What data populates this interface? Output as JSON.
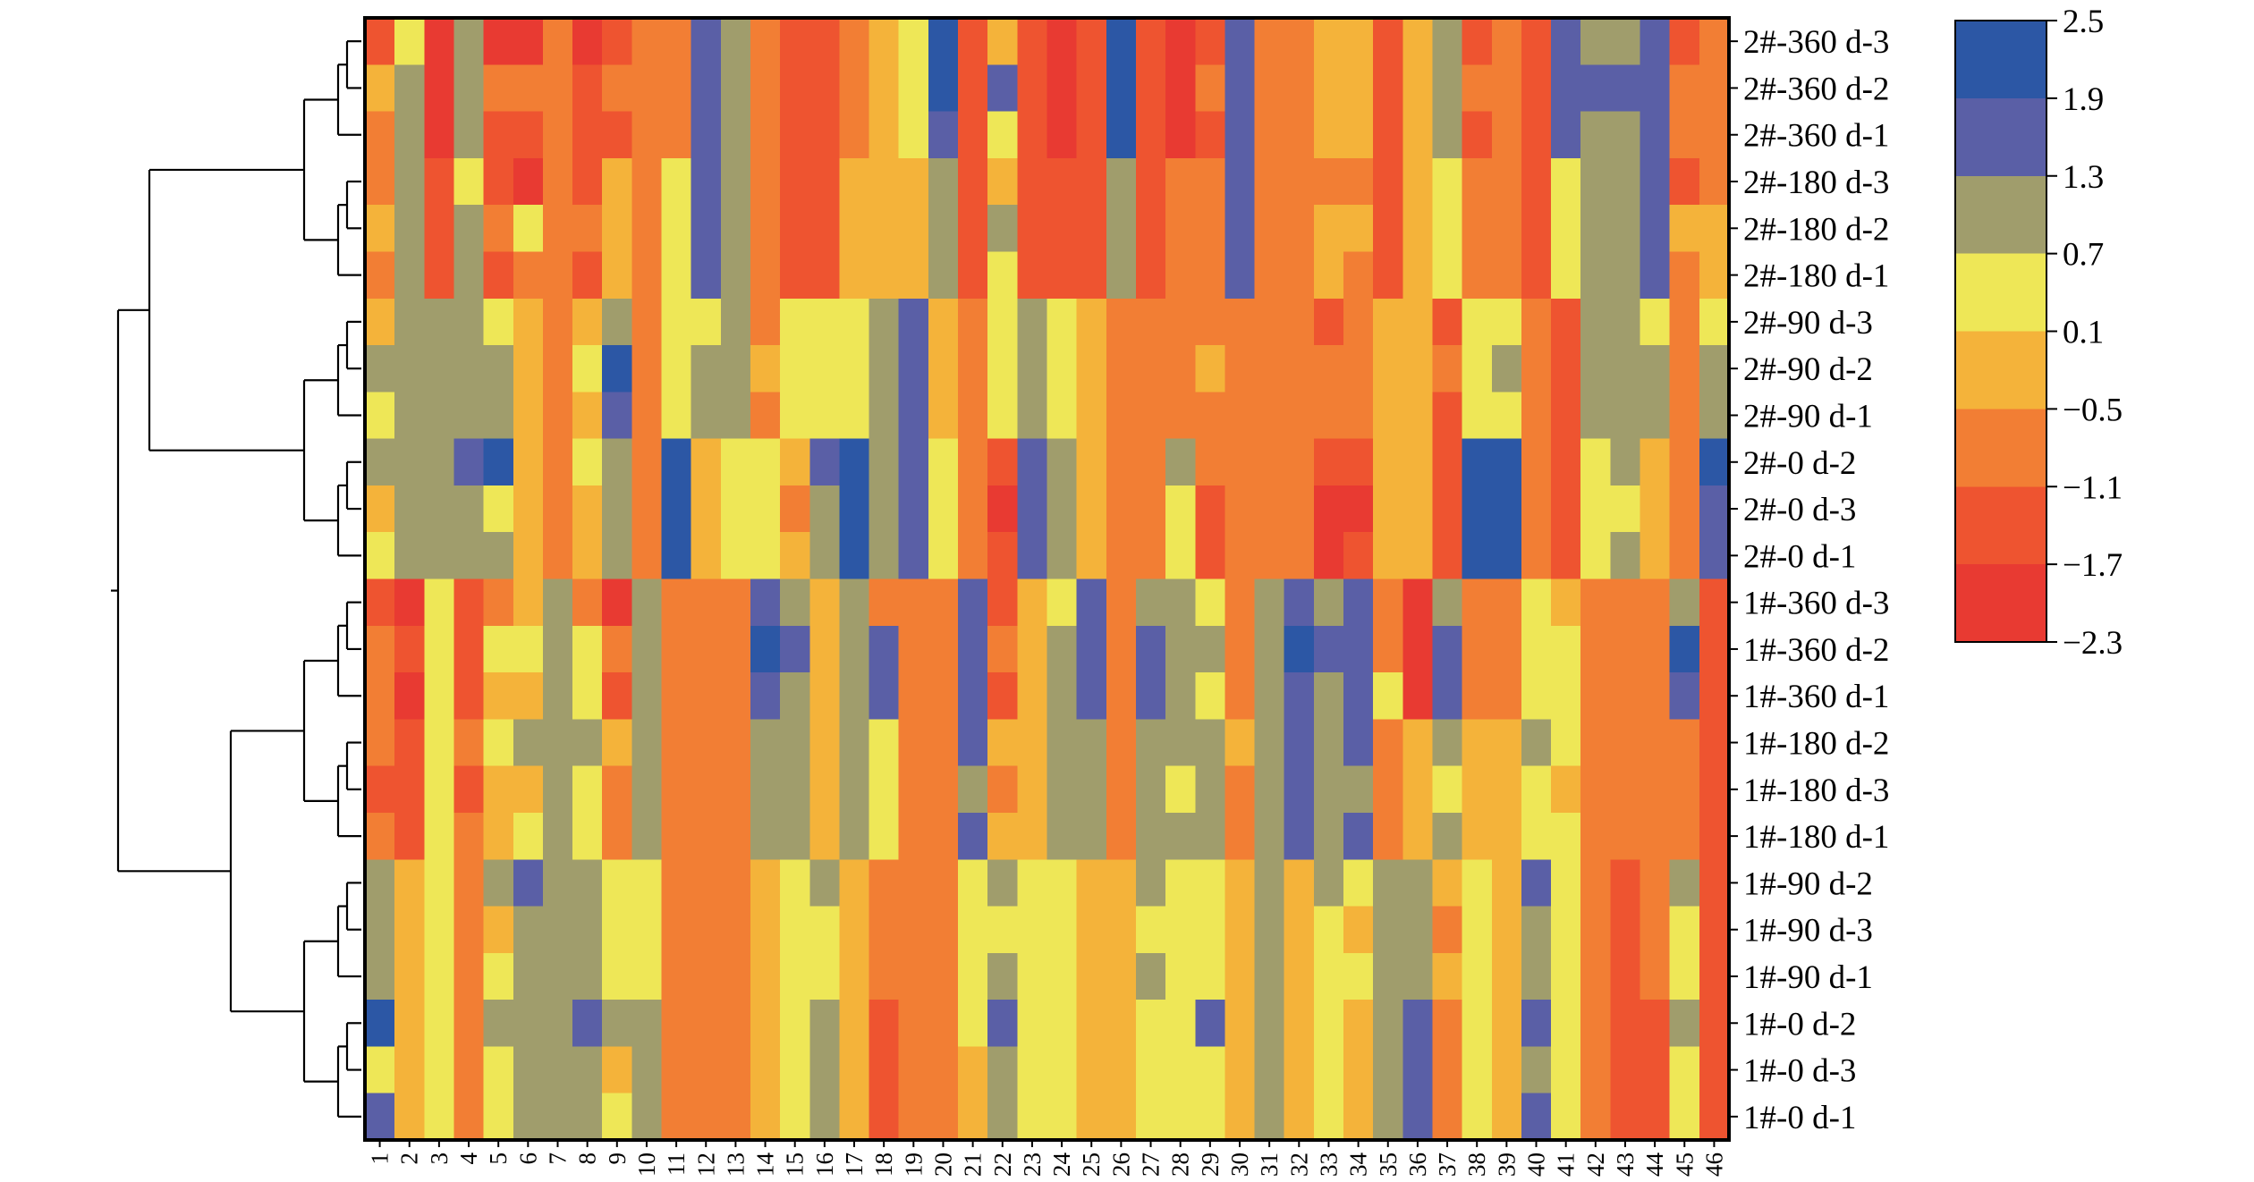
{
  "chart_data": {
    "type": "heatmap",
    "title": "",
    "xlabel": "",
    "ylabel": "",
    "columns": [
      "1",
      "2",
      "3",
      "4",
      "5",
      "6",
      "7",
      "8",
      "9",
      "10",
      "11",
      "12",
      "13",
      "14",
      "15",
      "16",
      "17",
      "18",
      "19",
      "20",
      "21",
      "22",
      "23",
      "24",
      "25",
      "26",
      "27",
      "28",
      "29",
      "30",
      "31",
      "32",
      "33",
      "34",
      "35",
      "36",
      "37",
      "38",
      "39",
      "40",
      "41",
      "42",
      "43",
      "44",
      "45",
      "46"
    ],
    "rows": [
      "2#-360 d-3",
      "2#-360 d-2",
      "2#-360 d-1",
      "2#-180 d-3",
      "2#-180 d-2",
      "2#-180 d-1",
      "2#-90 d-3",
      "2#-90 d-2",
      "2#-90 d-1",
      "2#-0 d-2",
      "2#-0 d-3",
      "2#-0 d-1",
      "1#-360 d-3",
      "1#-360 d-2",
      "1#-360 d-1",
      "1#-180 d-2",
      "1#-180 d-3",
      "1#-180 d-1",
      "1#-90 d-2",
      "1#-90 d-3",
      "1#-90 d-1",
      "1#-0 d-2",
      "1#-0 d-3",
      "1#-0 d-1"
    ],
    "values": [
      [
        -1.5,
        0.4,
        -2.0,
        1.0,
        -2.0,
        -2.0,
        -0.8,
        -2.0,
        -1.5,
        -0.8,
        -0.8,
        1.6,
        1.0,
        -0.8,
        -1.4,
        -1.4,
        -0.8,
        -0.2,
        0.4,
        2.2,
        -1.4,
        -0.2,
        -1.4,
        -2.0,
        -1.4,
        2.2,
        -1.4,
        -2.0,
        -1.5,
        1.6,
        -0.8,
        -0.8,
        -0.2,
        -0.2,
        -1.4,
        -0.2,
        1.0,
        -1.5,
        -0.8,
        -1.4,
        1.6,
        1.0,
        1.0,
        1.6,
        -1.4,
        -0.8
      ],
      [
        -0.2,
        1.0,
        -2.0,
        1.0,
        -0.8,
        -0.8,
        -0.8,
        -1.5,
        -0.8,
        -0.8,
        -0.8,
        1.6,
        1.0,
        -0.8,
        -1.4,
        -1.4,
        -0.8,
        -0.2,
        0.4,
        2.2,
        -1.4,
        1.6,
        -1.4,
        -2.0,
        -1.4,
        2.2,
        -1.4,
        -2.0,
        -0.8,
        1.6,
        -0.8,
        -0.8,
        -0.2,
        -0.2,
        -1.4,
        -0.2,
        1.0,
        -0.8,
        -0.8,
        -1.4,
        1.6,
        1.6,
        1.6,
        1.6,
        -0.8,
        -0.8
      ],
      [
        -0.8,
        1.0,
        -2.0,
        1.0,
        -1.4,
        -1.4,
        -0.8,
        -1.5,
        -1.4,
        -0.8,
        -0.8,
        1.6,
        1.0,
        -0.8,
        -1.4,
        -1.4,
        -0.8,
        -0.2,
        0.4,
        1.6,
        -1.4,
        0.4,
        -1.4,
        -2.0,
        -1.4,
        2.2,
        -1.4,
        -2.0,
        -1.5,
        1.6,
        -0.8,
        -0.8,
        -0.2,
        -0.2,
        -1.4,
        -0.2,
        1.0,
        -1.5,
        -0.8,
        -1.4,
        1.6,
        1.0,
        1.0,
        1.6,
        -0.8,
        -0.8
      ],
      [
        -0.8,
        1.0,
        -1.4,
        0.4,
        -1.4,
        -2.0,
        -0.8,
        -1.5,
        -0.2,
        -0.8,
        0.4,
        1.6,
        1.0,
        -0.8,
        -1.4,
        -1.4,
        -0.2,
        -0.2,
        -0.2,
        1.0,
        -1.4,
        -0.2,
        -1.4,
        -1.4,
        -1.4,
        1.0,
        -1.4,
        -0.8,
        -0.8,
        1.6,
        -0.8,
        -0.8,
        -0.8,
        -0.8,
        -1.4,
        -0.2,
        0.4,
        -0.8,
        -0.8,
        -1.4,
        0.4,
        1.0,
        1.0,
        1.6,
        -1.5,
        -0.8
      ],
      [
        -0.2,
        1.0,
        -1.4,
        1.0,
        -0.8,
        0.4,
        -0.8,
        -0.8,
        -0.2,
        -0.8,
        0.4,
        1.6,
        1.0,
        -0.8,
        -1.4,
        -1.4,
        -0.2,
        -0.2,
        -0.2,
        1.0,
        -1.4,
        1.0,
        -1.4,
        -1.4,
        -1.4,
        1.0,
        -1.4,
        -0.8,
        -0.8,
        1.6,
        -0.8,
        -0.8,
        -0.2,
        -0.2,
        -1.4,
        -0.2,
        0.4,
        -0.8,
        -0.8,
        -1.4,
        0.4,
        1.0,
        1.0,
        1.6,
        -0.2,
        -0.2
      ],
      [
        -0.8,
        1.0,
        -1.4,
        1.0,
        -1.4,
        -0.8,
        -0.8,
        -1.5,
        -0.2,
        -0.8,
        0.4,
        1.6,
        1.0,
        -0.8,
        -1.4,
        -1.4,
        -0.2,
        -0.2,
        -0.2,
        1.0,
        -1.4,
        0.4,
        -1.4,
        -1.4,
        -1.4,
        1.0,
        -1.4,
        -0.8,
        -0.8,
        1.6,
        -0.8,
        -0.8,
        -0.2,
        -0.8,
        -1.4,
        -0.2,
        0.4,
        -0.8,
        -0.8,
        -1.4,
        0.4,
        1.0,
        1.0,
        1.6,
        -0.8,
        -0.2
      ],
      [
        -0.2,
        1.0,
        1.0,
        1.0,
        0.4,
        -0.2,
        -0.8,
        -0.2,
        1.0,
        -0.8,
        0.4,
        0.4,
        1.0,
        -0.8,
        0.4,
        0.4,
        0.4,
        1.0,
        1.6,
        -0.2,
        -0.8,
        0.4,
        1.0,
        0.4,
        -0.2,
        -0.8,
        -0.8,
        -0.8,
        -0.8,
        -0.8,
        -0.8,
        -0.8,
        -1.4,
        -0.8,
        -0.2,
        -0.2,
        -1.4,
        0.4,
        0.4,
        -0.8,
        -1.4,
        1.0,
        1.0,
        0.4,
        -0.8,
        0.4
      ],
      [
        1.0,
        1.0,
        1.0,
        1.0,
        1.0,
        -0.2,
        -0.8,
        0.4,
        2.2,
        -0.8,
        0.4,
        1.0,
        1.0,
        -0.2,
        0.4,
        0.4,
        0.4,
        1.0,
        1.6,
        -0.2,
        -0.8,
        0.4,
        1.0,
        0.4,
        -0.2,
        -0.8,
        -0.8,
        -0.8,
        -0.2,
        -0.8,
        -0.8,
        -0.8,
        -0.8,
        -0.8,
        -0.2,
        -0.2,
        -0.8,
        0.4,
        1.0,
        -0.8,
        -1.4,
        1.0,
        1.0,
        1.0,
        -0.8,
        1.0
      ],
      [
        0.4,
        1.0,
        1.0,
        1.0,
        1.0,
        -0.2,
        -0.8,
        -0.2,
        1.6,
        -0.8,
        0.4,
        1.0,
        1.0,
        -0.8,
        0.4,
        0.4,
        0.4,
        1.0,
        1.6,
        -0.2,
        -0.8,
        0.4,
        1.0,
        0.4,
        -0.2,
        -0.8,
        -0.8,
        -0.8,
        -0.8,
        -0.8,
        -0.8,
        -0.8,
        -0.8,
        -0.8,
        -0.2,
        -0.2,
        -1.4,
        0.4,
        0.4,
        -0.8,
        -1.4,
        1.0,
        1.0,
        1.0,
        -0.8,
        1.0
      ],
      [
        1.0,
        1.0,
        1.0,
        1.6,
        2.2,
        -0.2,
        -0.8,
        0.4,
        1.0,
        -0.8,
        2.2,
        -0.2,
        0.4,
        0.4,
        -0.2,
        1.6,
        2.2,
        1.0,
        1.6,
        0.4,
        -0.8,
        -1.4,
        1.6,
        1.0,
        -0.2,
        -0.8,
        -0.8,
        1.0,
        -0.8,
        -0.8,
        -0.8,
        -0.8,
        -1.4,
        -1.4,
        -0.2,
        -0.2,
        -1.4,
        2.2,
        2.2,
        -0.8,
        -1.4,
        0.4,
        1.0,
        -0.2,
        -0.8,
        2.2
      ],
      [
        -0.2,
        1.0,
        1.0,
        1.0,
        0.4,
        -0.2,
        -0.8,
        -0.2,
        1.0,
        -0.8,
        2.2,
        -0.2,
        0.4,
        0.4,
        -0.8,
        1.0,
        2.2,
        1.0,
        1.6,
        0.4,
        -0.8,
        -2.0,
        1.6,
        1.0,
        -0.2,
        -0.8,
        -0.8,
        0.4,
        -1.4,
        -0.8,
        -0.8,
        -0.8,
        -2.0,
        -2.0,
        -0.2,
        -0.2,
        -1.4,
        2.2,
        2.2,
        -0.8,
        -1.4,
        0.4,
        0.4,
        -0.2,
        -0.8,
        1.6
      ],
      [
        0.4,
        1.0,
        1.0,
        1.0,
        1.0,
        -0.2,
        -0.8,
        -0.2,
        1.0,
        -0.8,
        2.2,
        -0.2,
        0.4,
        0.4,
        -0.2,
        1.0,
        2.2,
        1.0,
        1.6,
        0.4,
        -0.8,
        -1.4,
        1.6,
        1.0,
        -0.2,
        -0.8,
        -0.8,
        0.4,
        -1.4,
        -0.8,
        -0.8,
        -0.8,
        -2.0,
        -1.4,
        -0.2,
        -0.2,
        -1.4,
        2.2,
        2.2,
        -0.8,
        -1.4,
        0.4,
        1.0,
        -0.2,
        -0.8,
        1.6
      ],
      [
        -1.4,
        -2.0,
        0.4,
        -1.4,
        -0.8,
        -0.2,
        1.0,
        -0.8,
        -2.0,
        1.0,
        -0.8,
        -0.8,
        -0.8,
        1.6,
        1.0,
        -0.2,
        1.0,
        -0.8,
        -0.8,
        -0.8,
        1.6,
        -1.4,
        -0.2,
        0.4,
        1.6,
        -0.8,
        1.0,
        1.0,
        0.4,
        -0.8,
        1.0,
        1.6,
        1.0,
        1.6,
        -0.8,
        -2.0,
        1.0,
        -0.8,
        -0.8,
        0.4,
        -0.2,
        -0.8,
        -0.8,
        -0.8,
        1.0,
        -1.4
      ],
      [
        -0.8,
        -1.4,
        0.4,
        -1.4,
        0.4,
        0.4,
        1.0,
        0.4,
        -0.8,
        1.0,
        -0.8,
        -0.8,
        -0.8,
        2.2,
        1.6,
        -0.2,
        1.0,
        1.6,
        -0.8,
        -0.8,
        1.6,
        -0.8,
        -0.2,
        1.0,
        1.6,
        -0.8,
        1.6,
        1.0,
        1.0,
        -0.8,
        1.0,
        2.2,
        1.6,
        1.6,
        -0.8,
        -2.0,
        1.6,
        -0.8,
        -0.8,
        0.4,
        0.4,
        -0.8,
        -0.8,
        -0.8,
        2.2,
        -1.4
      ],
      [
        -0.8,
        -2.0,
        0.4,
        -1.4,
        -0.2,
        -0.2,
        1.0,
        0.4,
        -1.4,
        1.0,
        -0.8,
        -0.8,
        -0.8,
        1.6,
        1.0,
        -0.2,
        1.0,
        1.6,
        -0.8,
        -0.8,
        1.6,
        -1.4,
        -0.2,
        1.0,
        1.6,
        -0.8,
        1.6,
        1.0,
        0.4,
        -0.8,
        1.0,
        1.6,
        1.0,
        1.6,
        0.4,
        -2.0,
        1.6,
        -0.8,
        -0.8,
        0.4,
        0.4,
        -0.8,
        -0.8,
        -0.8,
        1.6,
        -1.4
      ],
      [
        -0.8,
        -1.4,
        0.4,
        -0.8,
        0.4,
        1.0,
        1.0,
        1.0,
        -0.2,
        1.0,
        -0.8,
        -0.8,
        -0.8,
        1.0,
        1.0,
        -0.2,
        1.0,
        0.4,
        -0.8,
        -0.8,
        1.6,
        -0.2,
        -0.2,
        1.0,
        1.0,
        -0.8,
        1.0,
        1.0,
        1.0,
        -0.2,
        1.0,
        1.6,
        1.0,
        1.6,
        -0.8,
        -0.2,
        1.0,
        -0.2,
        -0.2,
        1.0,
        0.4,
        -0.8,
        -0.8,
        -0.8,
        -0.8,
        -1.4
      ],
      [
        -1.4,
        -1.4,
        0.4,
        -1.4,
        -0.2,
        -0.2,
        1.0,
        0.4,
        -0.8,
        1.0,
        -0.8,
        -0.8,
        -0.8,
        1.0,
        1.0,
        -0.2,
        1.0,
        0.4,
        -0.8,
        -0.8,
        1.0,
        -0.8,
        -0.2,
        1.0,
        1.0,
        -0.8,
        1.0,
        0.4,
        1.0,
        -0.8,
        1.0,
        1.6,
        1.0,
        1.0,
        -0.8,
        -0.2,
        0.4,
        -0.2,
        -0.2,
        0.4,
        -0.2,
        -0.8,
        -0.8,
        -0.8,
        -0.8,
        -1.4
      ],
      [
        -0.8,
        -1.4,
        0.4,
        -0.8,
        -0.2,
        0.4,
        1.0,
        0.4,
        -0.8,
        1.0,
        -0.8,
        -0.8,
        -0.8,
        1.0,
        1.0,
        -0.2,
        1.0,
        0.4,
        -0.8,
        -0.8,
        1.6,
        -0.2,
        -0.2,
        1.0,
        1.0,
        -0.8,
        1.0,
        1.0,
        1.0,
        -0.8,
        1.0,
        1.6,
        1.0,
        1.6,
        -0.8,
        -0.2,
        1.0,
        -0.2,
        -0.2,
        0.4,
        0.4,
        -0.8,
        -0.8,
        -0.8,
        -0.8,
        -1.4
      ],
      [
        1.0,
        -0.2,
        0.4,
        -0.8,
        1.0,
        1.6,
        1.0,
        1.0,
        0.4,
        0.4,
        -0.8,
        -0.8,
        -0.8,
        -0.2,
        0.4,
        1.0,
        -0.2,
        -0.8,
        -0.8,
        -0.8,
        0.4,
        1.0,
        0.4,
        0.4,
        -0.2,
        -0.2,
        1.0,
        0.4,
        0.4,
        -0.2,
        1.0,
        -0.2,
        1.0,
        0.4,
        1.0,
        1.0,
        -0.2,
        0.4,
        -0.2,
        1.6,
        0.4,
        -0.8,
        -1.4,
        -0.8,
        1.0,
        -1.4
      ],
      [
        1.0,
        -0.2,
        0.4,
        -0.8,
        -0.2,
        1.0,
        1.0,
        1.0,
        0.4,
        0.4,
        -0.8,
        -0.8,
        -0.8,
        -0.2,
        0.4,
        0.4,
        -0.2,
        -0.8,
        -0.8,
        -0.8,
        0.4,
        0.4,
        0.4,
        0.4,
        -0.2,
        -0.2,
        0.4,
        0.4,
        0.4,
        -0.2,
        1.0,
        -0.2,
        0.4,
        -0.2,
        1.0,
        1.0,
        -0.8,
        0.4,
        -0.2,
        1.0,
        0.4,
        -0.8,
        -1.4,
        -0.8,
        0.4,
        -1.4
      ],
      [
        1.0,
        -0.2,
        0.4,
        -0.8,
        0.4,
        1.0,
        1.0,
        1.0,
        0.4,
        0.4,
        -0.8,
        -0.8,
        -0.8,
        -0.2,
        0.4,
        0.4,
        -0.2,
        -0.8,
        -0.8,
        -0.8,
        0.4,
        1.0,
        0.4,
        0.4,
        -0.2,
        -0.2,
        1.0,
        0.4,
        0.4,
        -0.2,
        1.0,
        -0.2,
        0.4,
        0.4,
        1.0,
        1.0,
        -0.2,
        0.4,
        -0.2,
        1.0,
        0.4,
        -0.8,
        -1.4,
        -0.8,
        0.4,
        -1.4
      ],
      [
        2.2,
        -0.2,
        0.4,
        -0.8,
        1.0,
        1.0,
        1.0,
        1.6,
        1.0,
        1.0,
        -0.8,
        -0.8,
        -0.8,
        -0.2,
        0.4,
        1.0,
        -0.2,
        -1.4,
        -0.8,
        -0.8,
        0.4,
        1.6,
        0.4,
        0.4,
        -0.2,
        -0.2,
        0.4,
        0.4,
        1.6,
        -0.2,
        1.0,
        -0.2,
        0.4,
        -0.2,
        1.0,
        1.6,
        -0.8,
        0.4,
        -0.2,
        1.6,
        0.4,
        -0.8,
        -1.4,
        -1.4,
        1.0,
        -1.4
      ],
      [
        0.4,
        -0.2,
        0.4,
        -0.8,
        0.4,
        1.0,
        1.0,
        1.0,
        -0.2,
        1.0,
        -0.8,
        -0.8,
        -0.8,
        -0.2,
        0.4,
        1.0,
        -0.2,
        -1.4,
        -0.8,
        -0.8,
        -0.2,
        1.0,
        0.4,
        0.4,
        -0.2,
        -0.2,
        0.4,
        0.4,
        0.4,
        -0.2,
        1.0,
        -0.2,
        0.4,
        -0.2,
        1.0,
        1.6,
        -0.8,
        0.4,
        -0.2,
        1.0,
        0.4,
        -0.8,
        -1.4,
        -1.4,
        0.4,
        -1.4
      ],
      [
        1.6,
        -0.2,
        0.4,
        -0.8,
        0.4,
        1.0,
        1.0,
        1.0,
        0.4,
        1.0,
        -0.8,
        -0.8,
        -0.8,
        -0.2,
        0.4,
        1.0,
        -0.2,
        -1.4,
        -0.8,
        -0.8,
        -0.2,
        1.0,
        0.4,
        0.4,
        -0.2,
        -0.2,
        0.4,
        0.4,
        0.4,
        -0.2,
        1.0,
        -0.2,
        0.4,
        -0.2,
        1.0,
        1.6,
        -0.8,
        0.4,
        -0.2,
        1.6,
        0.4,
        -0.8,
        -1.4,
        -1.4,
        0.4,
        -1.4
      ]
    ],
    "colorbar": {
      "ticks": [
        "2.5",
        "1.9",
        "1.3",
        "0.7",
        "0.1",
        "−0.5",
        "−1.1",
        "−1.7",
        "−2.3"
      ],
      "range": [
        -2.3,
        2.5
      ],
      "bins": [
        {
          "min": 1.9,
          "max": 2.5,
          "color": "#2c57a5"
        },
        {
          "min": 1.3,
          "max": 1.9,
          "color": "#5a5fa6"
        },
        {
          "min": 0.7,
          "max": 1.3,
          "color": "#a09d6c"
        },
        {
          "min": 0.1,
          "max": 0.7,
          "color": "#eee757"
        },
        {
          "min": -0.5,
          "max": 0.1,
          "color": "#f4b33a"
        },
        {
          "min": -1.1,
          "max": -0.5,
          "color": "#f27e34"
        },
        {
          "min": -1.7,
          "max": -1.1,
          "color": "#ee5430"
        },
        {
          "min": -2.3,
          "max": -1.7,
          "color": "#e83a32"
        }
      ]
    },
    "dendrogram": {
      "side": "left",
      "groups": [
        [
          [
            0,
            1
          ],
          2
        ],
        [
          [
            3,
            4
          ],
          5
        ],
        [
          [
            6,
            7
          ],
          8
        ],
        [
          [
            9,
            10
          ],
          11
        ],
        [
          [
            12,
            13
          ],
          14
        ],
        [
          [
            15,
            16
          ],
          17
        ],
        [
          [
            18,
            19
          ],
          20
        ],
        [
          [
            21,
            22
          ],
          23
        ]
      ]
    },
    "grid": false,
    "legend": "right"
  }
}
